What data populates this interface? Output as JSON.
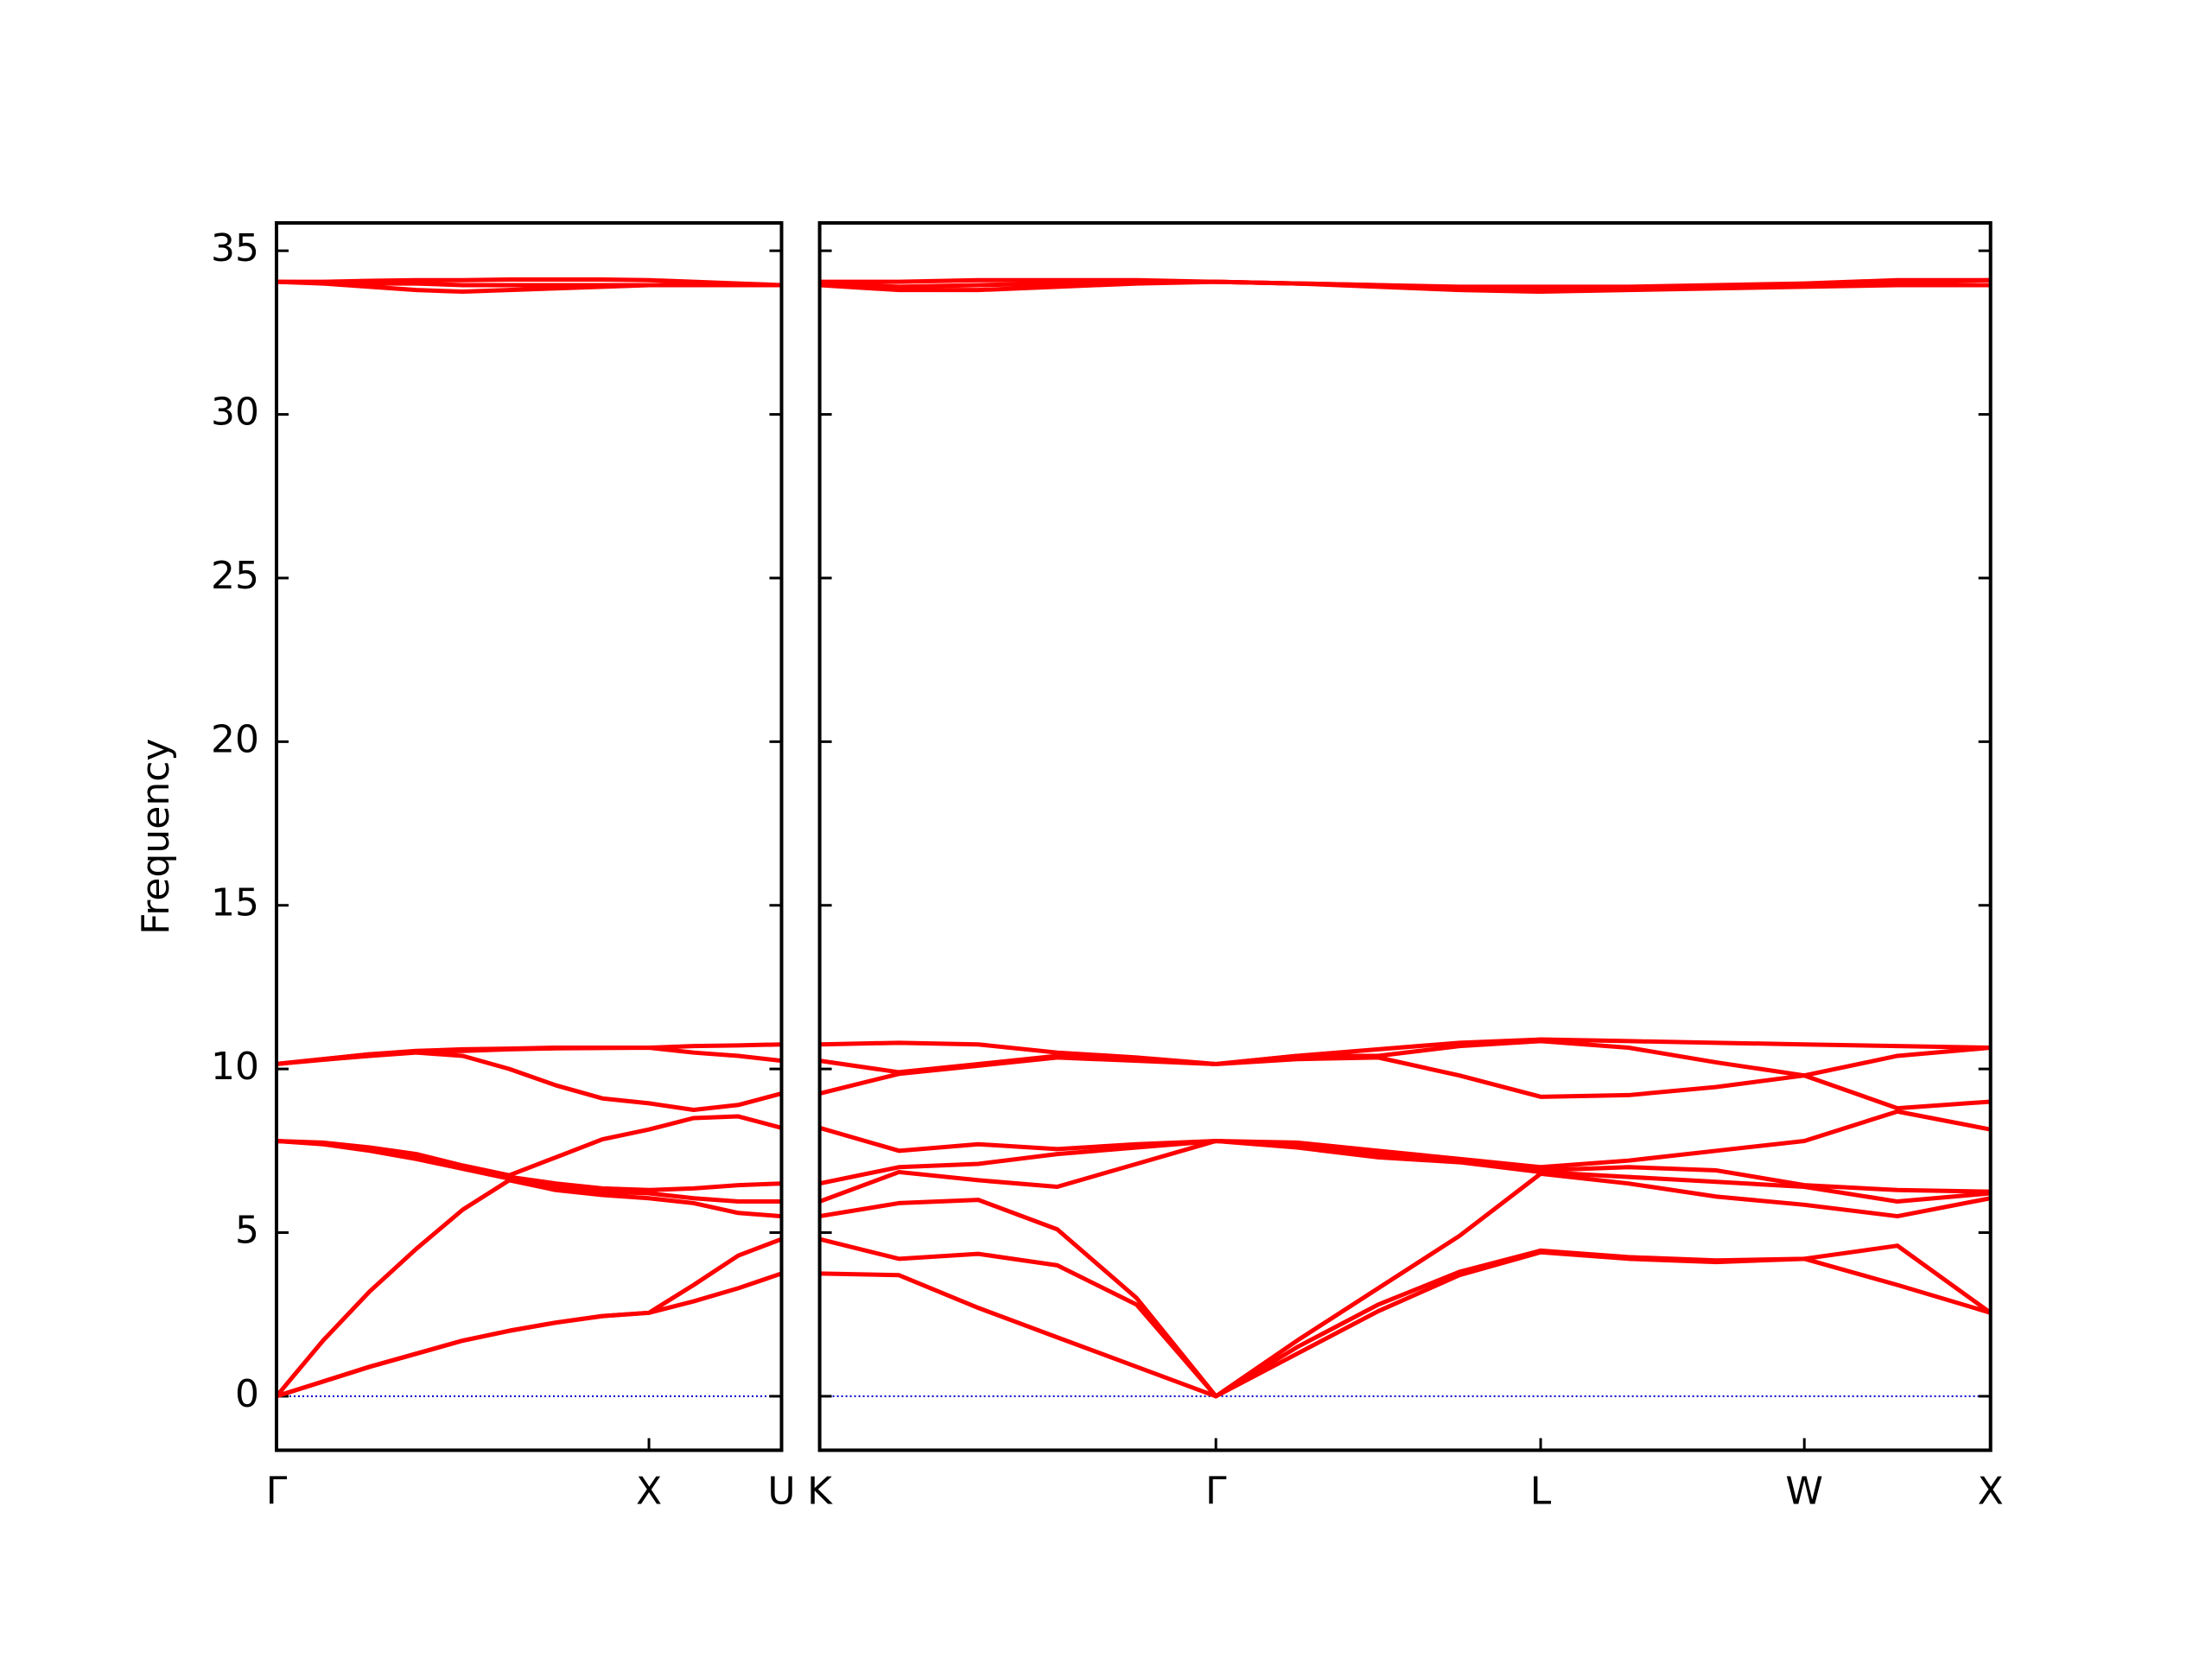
{
  "chart_data": [
    {
      "type": "line",
      "ylabel": "Frequency",
      "show_ytick_labels": true,
      "xlim": [
        0,
        1.356
      ],
      "ylim": [
        -1.65,
        35.85
      ],
      "yticks": [
        0,
        5,
        10,
        15,
        20,
        25,
        30,
        35
      ],
      "xticks": [
        {
          "value": 0,
          "label": "Γ"
        },
        {
          "value": 1,
          "label": "X"
        },
        {
          "value": 1.356,
          "label": "U"
        }
      ],
      "zero_line": {
        "y": 0,
        "color": "#0000cc"
      },
      "x": [
        0,
        0.125,
        0.25,
        0.375,
        0.5,
        0.625,
        0.75,
        0.875,
        1,
        1.12,
        1.24,
        1.356
      ],
      "series": [
        {
          "color": "#ff0000",
          "values": [
            0,
            0.45,
            0.9,
            1.3,
            1.7,
            2.0,
            2.25,
            2.45,
            2.55,
            2.9,
            3.3,
            3.75
          ]
        },
        {
          "color": "#ff0000",
          "values": [
            0,
            0.45,
            0.9,
            1.3,
            1.7,
            2.0,
            2.25,
            2.45,
            2.55,
            3.4,
            4.3,
            4.8
          ]
        },
        {
          "color": "#ff0000",
          "values": [
            0,
            1.7,
            3.2,
            4.5,
            5.7,
            6.6,
            6.3,
            6.15,
            6.05,
            5.9,
            5.6,
            5.5
          ]
        },
        {
          "color": "#ff0000",
          "values": [
            7.8,
            7.7,
            7.5,
            7.25,
            6.95,
            6.65,
            6.4,
            6.25,
            6.2,
            6.05,
            5.95,
            5.95
          ]
        },
        {
          "color": "#ff0000",
          "values": [
            7.8,
            7.72,
            7.55,
            7.3,
            7.0,
            6.7,
            6.5,
            6.35,
            6.3,
            6.35,
            6.45,
            6.5
          ]
        },
        {
          "color": "#ff0000",
          "values": [
            7.8,
            7.75,
            7.6,
            7.4,
            7.05,
            6.75,
            7.3,
            7.85,
            8.15,
            8.5,
            8.55,
            8.2
          ]
        },
        {
          "color": "#ff0000",
          "values": [
            10.15,
            10.28,
            10.4,
            10.5,
            10.4,
            10.0,
            9.5,
            9.1,
            8.95,
            8.75,
            8.9,
            9.25
          ]
        },
        {
          "color": "#ff0000",
          "values": [
            10.15,
            10.3,
            10.45,
            10.52,
            10.55,
            10.6,
            10.63,
            10.64,
            10.65,
            10.5,
            10.4,
            10.25
          ]
        },
        {
          "color": "#ff0000",
          "values": [
            10.15,
            10.3,
            10.45,
            10.55,
            10.6,
            10.62,
            10.65,
            10.65,
            10.65,
            10.7,
            10.72,
            10.75
          ]
        },
        {
          "color": "#ff0000",
          "values": [
            34.05,
            34.0,
            33.9,
            33.8,
            33.75,
            33.8,
            33.85,
            33.9,
            33.95,
            33.95,
            33.95,
            33.95
          ]
        },
        {
          "color": "#ff0000",
          "values": [
            34.05,
            34.03,
            34.0,
            34.0,
            33.95,
            33.95,
            33.95,
            33.95,
            33.95,
            33.95,
            33.95,
            33.95
          ]
        },
        {
          "color": "#ff0000",
          "values": [
            34.05,
            34.05,
            34.08,
            34.1,
            34.1,
            34.12,
            34.12,
            34.12,
            34.1,
            34.05,
            34.0,
            33.95
          ]
        }
      ]
    },
    {
      "type": "line",
      "show_ytick_labels": false,
      "xlim": [
        0,
        3.144
      ],
      "ylim": [
        -1.65,
        35.85
      ],
      "yticks": [
        0,
        5,
        10,
        15,
        20,
        25,
        30,
        35
      ],
      "xticks": [
        {
          "value": 0,
          "label": "K"
        },
        {
          "value": 1.064,
          "label": "Γ"
        },
        {
          "value": 1.936,
          "label": "L"
        },
        {
          "value": 2.644,
          "label": "W"
        },
        {
          "value": 3.144,
          "label": "X"
        }
      ],
      "zero_line": {
        "y": 0,
        "color": "#0000cc"
      },
      "x": [
        0,
        0.213,
        0.426,
        0.638,
        0.851,
        1.064,
        1.282,
        1.5,
        1.718,
        1.936,
        2.172,
        2.408,
        2.644,
        2.894,
        3.144
      ],
      "series": [
        {
          "color": "#ff0000",
          "values": [
            3.75,
            3.7,
            2.7,
            1.8,
            0.9,
            0,
            1.3,
            2.6,
            3.7,
            4.4,
            4.2,
            4.1,
            4.2,
            3.4,
            2.55
          ]
        },
        {
          "color": "#ff0000",
          "values": [
            4.8,
            4.2,
            4.35,
            4.0,
            2.8,
            0,
            1.5,
            2.8,
            3.8,
            4.45,
            4.25,
            4.15,
            4.2,
            4.6,
            2.55
          ]
        },
        {
          "color": "#ff0000",
          "values": [
            5.5,
            5.9,
            6.0,
            5.1,
            3.0,
            0,
            1.7,
            3.3,
            4.9,
            6.8,
            6.5,
            6.1,
            5.85,
            5.5,
            6.05
          ]
        },
        {
          "color": "#ff0000",
          "values": [
            5.95,
            6.85,
            6.6,
            6.4,
            7.1,
            7.8,
            7.6,
            7.3,
            7.15,
            6.85,
            6.7,
            6.55,
            6.4,
            5.95,
            6.2
          ]
        },
        {
          "color": "#ff0000",
          "values": [
            6.5,
            7.0,
            7.1,
            7.4,
            7.6,
            7.8,
            7.7,
            7.4,
            7.2,
            6.9,
            7.0,
            6.9,
            6.45,
            6.3,
            6.25
          ]
        },
        {
          "color": "#ff0000",
          "values": [
            8.2,
            7.5,
            7.7,
            7.55,
            7.7,
            7.8,
            7.75,
            7.5,
            7.25,
            7.0,
            7.2,
            7.5,
            7.8,
            8.7,
            8.15
          ]
        },
        {
          "color": "#ff0000",
          "values": [
            9.25,
            9.85,
            10.1,
            10.35,
            10.25,
            10.15,
            10.3,
            10.35,
            9.8,
            9.15,
            9.2,
            9.45,
            9.8,
            8.8,
            9.0
          ]
        },
        {
          "color": "#ff0000",
          "values": [
            10.25,
            9.9,
            10.15,
            10.4,
            10.3,
            10.15,
            10.4,
            10.4,
            10.7,
            10.85,
            10.65,
            10.2,
            9.8,
            10.4,
            10.65
          ]
        },
        {
          "color": "#ff0000",
          "values": [
            10.75,
            10.8,
            10.75,
            10.5,
            10.35,
            10.15,
            10.4,
            10.6,
            10.8,
            10.9,
            10.85,
            10.8,
            10.75,
            10.7,
            10.65
          ]
        },
        {
          "color": "#ff0000",
          "values": [
            33.95,
            33.8,
            33.8,
            33.9,
            34.0,
            34.05,
            34.0,
            33.9,
            33.8,
            33.75,
            33.8,
            33.85,
            33.9,
            33.95,
            33.95
          ]
        },
        {
          "color": "#ff0000",
          "values": [
            34.0,
            33.9,
            33.95,
            34.0,
            34.05,
            34.05,
            34.0,
            33.95,
            33.85,
            33.85,
            33.85,
            33.9,
            33.95,
            34.05,
            34.1
          ]
        },
        {
          "color": "#ff0000",
          "values": [
            34.05,
            34.05,
            34.1,
            34.1,
            34.1,
            34.05,
            34.0,
            33.95,
            33.9,
            33.9,
            33.9,
            33.95,
            34.0,
            34.1,
            34.1
          ]
        }
      ]
    }
  ]
}
